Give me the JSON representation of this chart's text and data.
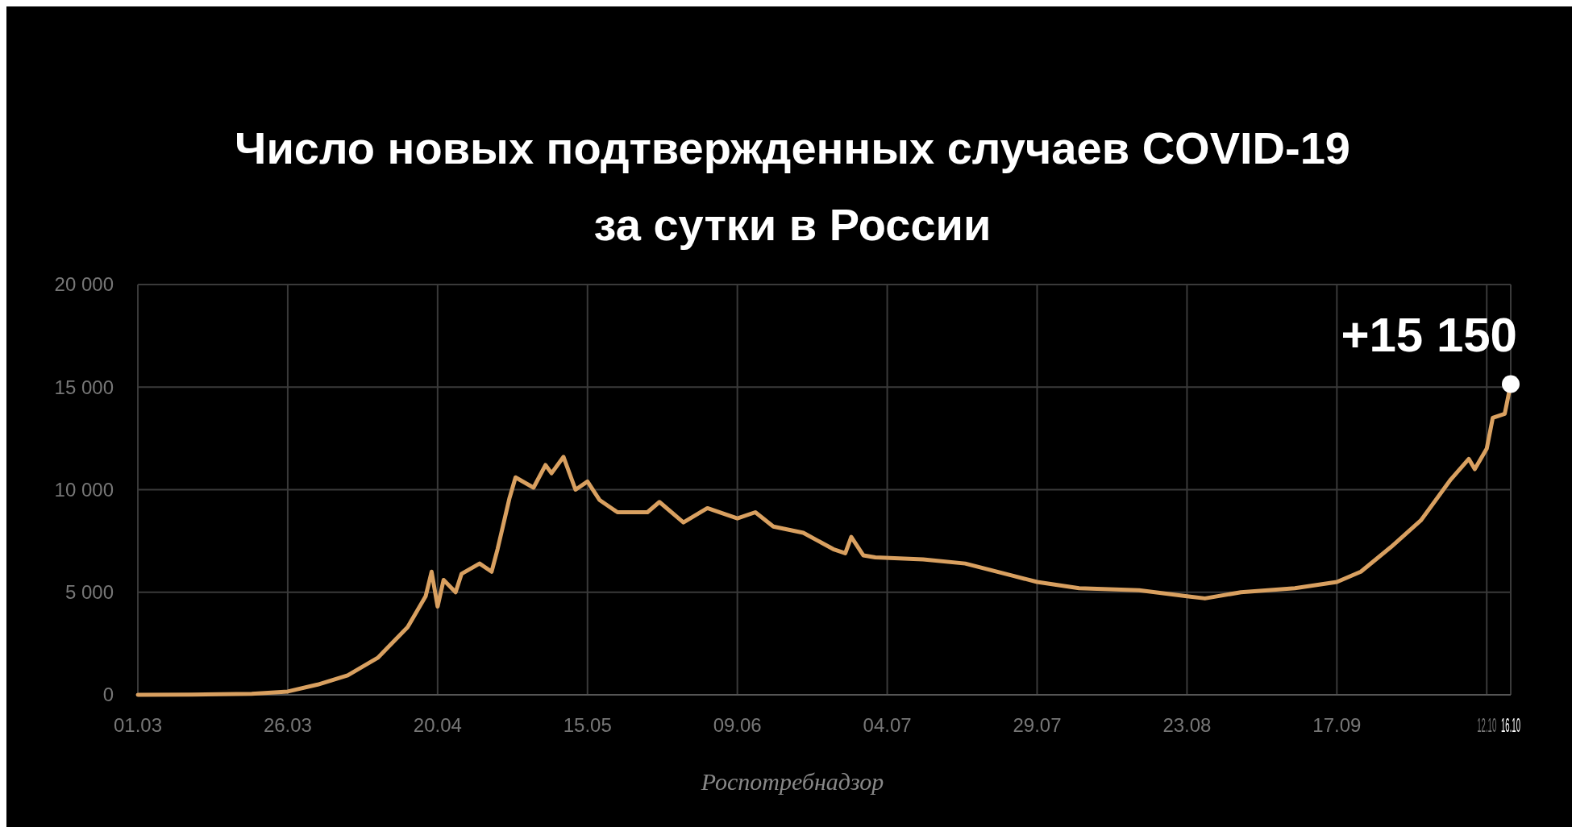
{
  "chart_data": {
    "type": "line",
    "title": "Число новых подтвержденных случаев COVID-19 за сутки в России",
    "annotations": [
      {
        "text": "+15 150",
        "x": "--10-16",
        "y": 15150
      },
      "Роспотребнадзор"
    ],
    "x": [
      "--03-01",
      "--03-10",
      "--03-20",
      "--03-26",
      "--03-31",
      "--04-05",
      "--04-10",
      "--04-15",
      "--04-18",
      "--04-19",
      "--04-20",
      "--04-21",
      "--04-23",
      "--04-24",
      "--04-27",
      "--04-29",
      "--04-30",
      "--05-02",
      "--05-03",
      "--05-06",
      "--05-08",
      "--05-09",
      "--05-11",
      "--05-13",
      "--05-15",
      "--05-17",
      "--05-20",
      "--05-25",
      "--05-27",
      "--05-31",
      "--06-04",
      "--06-09",
      "--06-12",
      "--06-15",
      "--06-20",
      "--06-25",
      "--06-27",
      "--06-28",
      "--06-30",
      "--07-02",
      "--07-10",
      "--07-17",
      "--07-25",
      "--07-29",
      "--08-05",
      "--08-15",
      "--08-23",
      "--08-26",
      "--09-01",
      "--09-10",
      "--09-17",
      "--09-21",
      "--09-26",
      "--10-01",
      "--10-06",
      "--10-09",
      "--10-10",
      "--10-12",
      "--10-13",
      "--10-15",
      "--10-16"
    ],
    "series": [
      {
        "color": "#d9a060",
        "values": [
          0,
          10,
          50,
          160,
          500,
          950,
          1800,
          3300,
          4800,
          6000,
          4300,
          5600,
          5000,
          5900,
          6400,
          6000,
          7100,
          9600,
          10600,
          10100,
          11200,
          10800,
          11600,
          10000,
          10400,
          9500,
          8900,
          8900,
          9400,
          8400,
          9100,
          8600,
          8900,
          8200,
          7900,
          7100,
          6900,
          7700,
          6800,
          6700,
          6600,
          6400,
          5800,
          5500,
          5200,
          5100,
          4800,
          4700,
          5000,
          5200,
          5500,
          6000,
          7200,
          8500,
          10500,
          11500,
          11000,
          12000,
          13500,
          13700,
          15150
        ]
      }
    ],
    "xlim": [
      "--03-01",
      "--10-16"
    ],
    "xticks": [
      {
        "value": "--03-01",
        "label": "01.03"
      },
      {
        "value": "--03-26",
        "label": "26.03"
      },
      {
        "value": "--04-20",
        "label": "20.04"
      },
      {
        "value": "--05-15",
        "label": "15.05"
      },
      {
        "value": "--06-09",
        "label": "09.06"
      },
      {
        "value": "--07-04",
        "label": "04.07"
      },
      {
        "value": "--07-29",
        "label": "29.07"
      },
      {
        "value": "--08-23",
        "label": "23.08"
      },
      {
        "value": "--09-17",
        "label": "17.09"
      },
      {
        "value": "--10-12",
        "label": "12.10"
      },
      {
        "value": "--10-16",
        "label": "16.10"
      }
    ],
    "ylim": [
      0,
      20000
    ],
    "yticks": [
      {
        "value": 0,
        "label": "0"
      },
      {
        "value": 5000,
        "label": "5 000"
      },
      {
        "value": 10000,
        "label": "10 000"
      },
      {
        "value": 15000,
        "label": "15 000"
      },
      {
        "value": 20000,
        "label": "20 000"
      }
    ],
    "grid": true,
    "marker": "none",
    "line_style": "solid"
  }
}
